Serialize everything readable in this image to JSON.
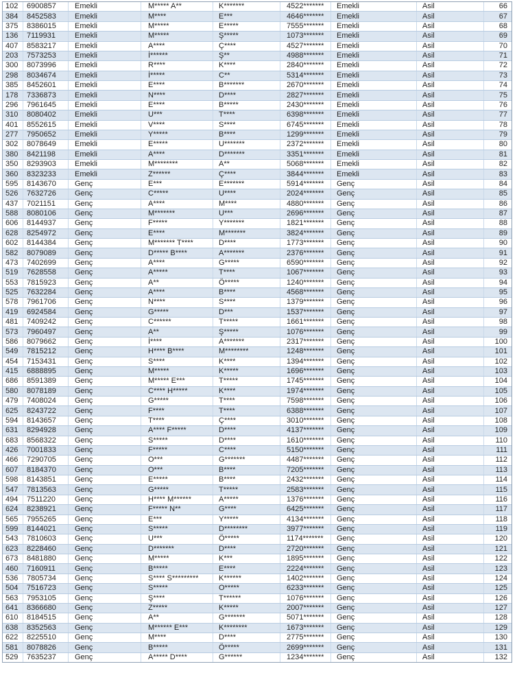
{
  "colors": {
    "stripe": "#dce6f1",
    "outer_border": "#8fa0b4",
    "inner_hborder": "#b7cbe1",
    "inner_vborder": "#c9d9ea",
    "text": "#1f1f1f"
  },
  "table": {
    "column_keys": [
      "applicant-seq",
      "application-no",
      "category",
      "first-name",
      "last-name",
      "id-number",
      "category-2",
      "result",
      "row-number"
    ],
    "rows": [
      [
        "102",
        "6900857",
        "Emekli",
        "M***** A**",
        "K*******",
        "4522*******",
        "Emekli",
        "Asil",
        "66"
      ],
      [
        "384",
        "8452583",
        "Emekli",
        "M****",
        "E***",
        "4646*******",
        "Emekli",
        "Asil",
        "67"
      ],
      [
        "375",
        "8386015",
        "Emekli",
        "M*****",
        "E*****",
        "7555*******",
        "Emekli",
        "Asil",
        "68"
      ],
      [
        "136",
        "7119931",
        "Emekli",
        "M*****",
        "Ş*****",
        "1073*******",
        "Emekli",
        "Asil",
        "69"
      ],
      [
        "407",
        "8583217",
        "Emekli",
        "A****",
        "Ç****",
        "4527*******",
        "Emekli",
        "Asil",
        "70"
      ],
      [
        "203",
        "7573253",
        "Emekli",
        "İ******",
        "Ş**",
        "4988*******",
        "Emekli",
        "Asil",
        "71"
      ],
      [
        "300",
        "8073996",
        "Emekli",
        "R****",
        "K****",
        "2840*******",
        "Emekli",
        "Asil",
        "72"
      ],
      [
        "298",
        "8034674",
        "Emekli",
        "İ*****",
        "C**",
        "5314*******",
        "Emekli",
        "Asil",
        "73"
      ],
      [
        "385",
        "8452601",
        "Emekli",
        "E****",
        "B*******",
        "2670*******",
        "Emekli",
        "Asil",
        "74"
      ],
      [
        "178",
        "7336873",
        "Emekli",
        "N****",
        "D****",
        "2827*******",
        "Emekli",
        "Asil",
        "75"
      ],
      [
        "296",
        "7961645",
        "Emekli",
        "E****",
        "B*****",
        "2430*******",
        "Emekli",
        "Asil",
        "76"
      ],
      [
        "310",
        "8080402",
        "Emekli",
        "U***",
        "T****",
        "6398*******",
        "Emekli",
        "Asil",
        "77"
      ],
      [
        "401",
        "8552615",
        "Emekli",
        "V****",
        "S****",
        "6745*******",
        "Emekli",
        "Asil",
        "78"
      ],
      [
        "277",
        "7950652",
        "Emekli",
        "Y*****",
        "B****",
        "1299*******",
        "Emekli",
        "Asil",
        "79"
      ],
      [
        "302",
        "8078649",
        "Emekli",
        "E*****",
        "U*******",
        "2372*******",
        "Emekli",
        "Asil",
        "80"
      ],
      [
        "380",
        "8421198",
        "Emekli",
        "A****",
        "D*******",
        "3351*******",
        "Emekli",
        "Asil",
        "81"
      ],
      [
        "350",
        "8293903",
        "Emekli",
        "M********",
        "A**",
        "5068*******",
        "Emekli",
        "Asil",
        "82"
      ],
      [
        "360",
        "8323233",
        "Emekli",
        "Z******",
        "Ç****",
        "3844*******",
        "Emekli",
        "Asil",
        "83"
      ],
      [
        "595",
        "8143670",
        "Genç",
        "E***",
        "E*******",
        "5914*******",
        "Genç",
        "Asil",
        "84"
      ],
      [
        "526",
        "7632726",
        "Genç",
        "C*****",
        "U****",
        "2024*******",
        "Genç",
        "Asil",
        "85"
      ],
      [
        "437",
        "7021151",
        "Genç",
        "A****",
        "M****",
        "4880*******",
        "Genç",
        "Asil",
        "86"
      ],
      [
        "588",
        "8080106",
        "Genç",
        "M*******",
        "U***",
        "2696*******",
        "Genç",
        "Asil",
        "87"
      ],
      [
        "606",
        "8144937",
        "Genç",
        "F*****",
        "Y*******",
        "1821*******",
        "Genç",
        "Asil",
        "88"
      ],
      [
        "628",
        "8254972",
        "Genç",
        "E****",
        "M*******",
        "3824*******",
        "Genç",
        "Asil",
        "89"
      ],
      [
        "602",
        "8144384",
        "Genç",
        "M******* T****",
        "D****",
        "1773*******",
        "Genç",
        "Asil",
        "90"
      ],
      [
        "582",
        "8079089",
        "Genç",
        "D***** B****",
        "A*******",
        "2376*******",
        "Genç",
        "Asil",
        "91"
      ],
      [
        "473",
        "7402699",
        "Genç",
        "A****",
        "G*****",
        "6590*******",
        "Genç",
        "Asil",
        "92"
      ],
      [
        "519",
        "7628558",
        "Genç",
        "A*****",
        "T****",
        "1067*******",
        "Genç",
        "Asil",
        "93"
      ],
      [
        "553",
        "7815923",
        "Genç",
        "A**",
        "Ö*****",
        "1240*******",
        "Genç",
        "Asil",
        "94"
      ],
      [
        "525",
        "7632284",
        "Genç",
        "A****",
        "B****",
        "4568*******",
        "Genç",
        "Asil",
        "95"
      ],
      [
        "578",
        "7961706",
        "Genç",
        "N****",
        "S****",
        "1379*******",
        "Genç",
        "Asil",
        "96"
      ],
      [
        "419",
        "6924584",
        "Genç",
        "G*****",
        "D***",
        "1537*******",
        "Genç",
        "Asil",
        "97"
      ],
      [
        "481",
        "7409242",
        "Genç",
        "C******",
        "T*****",
        "1661*******",
        "Genç",
        "Asil",
        "98"
      ],
      [
        "573",
        "7960497",
        "Genç",
        "A**",
        "Ş*****",
        "1076*******",
        "Genç",
        "Asil",
        "99"
      ],
      [
        "586",
        "8079662",
        "Genç",
        "İ****",
        "A*******",
        "2317*******",
        "Genç",
        "Asil",
        "100"
      ],
      [
        "549",
        "7815212",
        "Genç",
        "H**** B****",
        "M********",
        "1248*******",
        "Genç",
        "Asil",
        "101"
      ],
      [
        "454",
        "7153431",
        "Genç",
        "S****",
        "K****",
        "1394*******",
        "Genç",
        "Asil",
        "102"
      ],
      [
        "415",
        "6888895",
        "Genç",
        "M*****",
        "K*****",
        "1696*******",
        "Genç",
        "Asil",
        "103"
      ],
      [
        "686",
        "8591389",
        "Genç",
        "M***** E***",
        "T*****",
        "1745*******",
        "Genç",
        "Asil",
        "104"
      ],
      [
        "580",
        "8078189",
        "Genç",
        "C**** H*****",
        "K****",
        "1974*******",
        "Genç",
        "Asil",
        "105"
      ],
      [
        "479",
        "7408024",
        "Genç",
        "G*****",
        "T****",
        "7598*******",
        "Genç",
        "Asil",
        "106"
      ],
      [
        "625",
        "8243722",
        "Genç",
        "F****",
        "T****",
        "6388*******",
        "Genç",
        "Asil",
        "107"
      ],
      [
        "594",
        "8143657",
        "Genç",
        "T****",
        "Ç****",
        "3010*******",
        "Genç",
        "Asil",
        "108"
      ],
      [
        "631",
        "8294928",
        "Genç",
        "A**** F*****",
        "D****",
        "4137*******",
        "Genç",
        "Asil",
        "109"
      ],
      [
        "683",
        "8568322",
        "Genç",
        "S*****",
        "D****",
        "1610*******",
        "Genç",
        "Asil",
        "110"
      ],
      [
        "426",
        "7001833",
        "Genç",
        "F*****",
        "C****",
        "5150*******",
        "Genç",
        "Asil",
        "111"
      ],
      [
        "466",
        "7290705",
        "Genç",
        "O***",
        "G*******",
        "4487*******",
        "Genç",
        "Asil",
        "112"
      ],
      [
        "607",
        "8184370",
        "Genç",
        "O***",
        "B****",
        "7205*******",
        "Genç",
        "Asil",
        "113"
      ],
      [
        "598",
        "8143851",
        "Genç",
        "E*****",
        "B****",
        "2432*******",
        "Genç",
        "Asil",
        "114"
      ],
      [
        "547",
        "7813563",
        "Genç",
        "G*****",
        "T*****",
        "2583*******",
        "Genç",
        "Asil",
        "115"
      ],
      [
        "494",
        "7511220",
        "Genç",
        "H**** M******",
        "A*****",
        "1376*******",
        "Genç",
        "Asil",
        "116"
      ],
      [
        "624",
        "8238921",
        "Genç",
        "F***** N**",
        "G****",
        "6425*******",
        "Genç",
        "Asil",
        "117"
      ],
      [
        "565",
        "7955265",
        "Genç",
        "E***",
        "Y*****",
        "4134*******",
        "Genç",
        "Asil",
        "118"
      ],
      [
        "599",
        "8144021",
        "Genç",
        "S*****",
        "D********",
        "3977*******",
        "Genç",
        "Asil",
        "119"
      ],
      [
        "543",
        "7810603",
        "Genç",
        "U***",
        "Ö*****",
        "1174*******",
        "Genç",
        "Asil",
        "120"
      ],
      [
        "623",
        "8228460",
        "Genç",
        "D*******",
        "D****",
        "2720*******",
        "Genç",
        "Asil",
        "121"
      ],
      [
        "673",
        "8481880",
        "Genç",
        "M*****",
        "K***",
        "1895*******",
        "Genç",
        "Asil",
        "122"
      ],
      [
        "460",
        "7160911",
        "Genç",
        "B*****",
        "E****",
        "2224*******",
        "Genç",
        "Asil",
        "123"
      ],
      [
        "536",
        "7805734",
        "Genç",
        "S**** S*********",
        "K******",
        "1402*******",
        "Genç",
        "Asil",
        "124"
      ],
      [
        "504",
        "7516723",
        "Genç",
        "S*****",
        "O*****",
        "6233*******",
        "Genç",
        "Asil",
        "125"
      ],
      [
        "563",
        "7953105",
        "Genç",
        "Ş****",
        "T******",
        "1076*******",
        "Genç",
        "Asil",
        "126"
      ],
      [
        "641",
        "8366680",
        "Genç",
        "Z*****",
        "K*****",
        "2007*******",
        "Genç",
        "Asil",
        "127"
      ],
      [
        "610",
        "8184515",
        "Genç",
        "A**",
        "G*******",
        "5071*******",
        "Genç",
        "Asil",
        "128"
      ],
      [
        "638",
        "8352563",
        "Genç",
        "M****** E***",
        "K********",
        "1673*******",
        "Genç",
        "Asil",
        "129"
      ],
      [
        "622",
        "8225510",
        "Genç",
        "M****",
        "D****",
        "2775*******",
        "Genç",
        "Asil",
        "130"
      ],
      [
        "581",
        "8078826",
        "Genç",
        "B*****",
        "Ö*****",
        "2699*******",
        "Genç",
        "Asil",
        "131"
      ],
      [
        "529",
        "7635237",
        "Genç",
        "A***** D****",
        "G******",
        "1234*******",
        "Genç",
        "Asil",
        "132"
      ]
    ]
  }
}
